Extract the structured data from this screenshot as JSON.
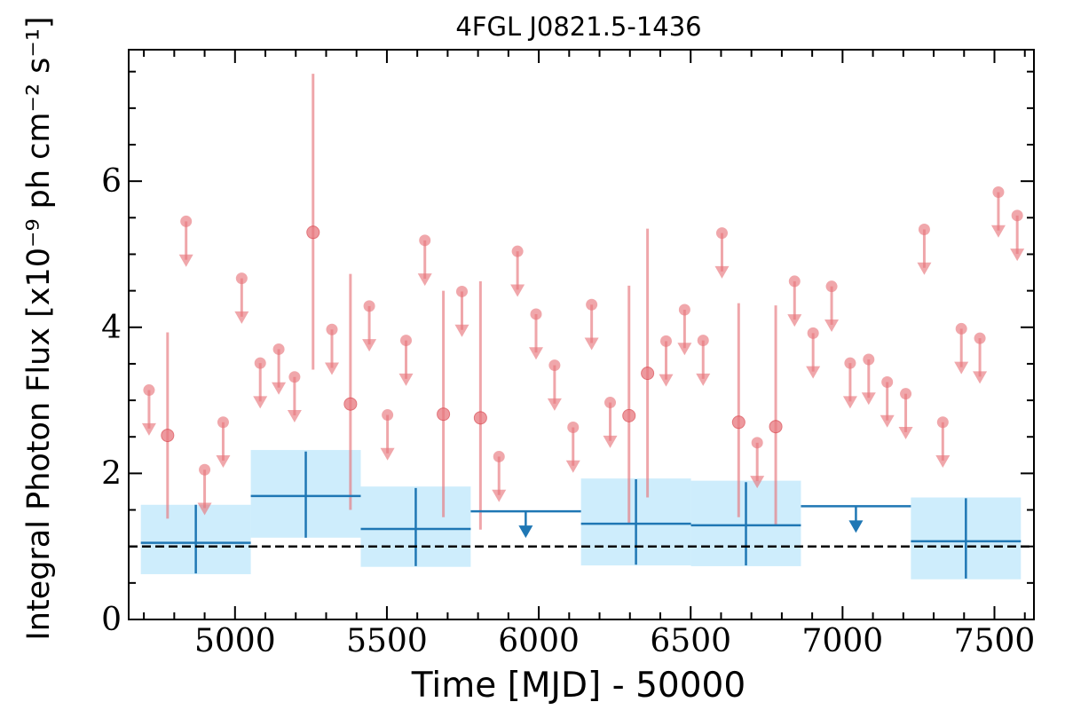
{
  "chart_data": {
    "type": "scatter",
    "title": "4FGL J0821.5-1436",
    "xlabel": "Time [MJD] - 50000",
    "ylabel": "Integral Photon Flux [x10⁻⁹ ph cm⁻² s⁻¹]",
    "xlim": [
      4650,
      7630
    ],
    "ylim": [
      0,
      7.8
    ],
    "xticks": [
      5000,
      5500,
      6000,
      6500,
      7000,
      7500
    ],
    "xtick_labels": [
      "5000",
      "5500",
      "6000",
      "6500",
      "7000",
      "7500"
    ],
    "yticks": [
      0,
      2,
      4,
      6
    ],
    "ytick_labels": [
      "0",
      "2",
      "4",
      "6"
    ],
    "reference_level": 1.0,
    "colors": {
      "short_bin": "#e8787e",
      "long_bin": "#1f77b4",
      "long_bin_band": "#b3e4fb",
      "reference": "#000000"
    },
    "series": [
      {
        "bin": "short",
        "detections": [
          {
            "x": 4778,
            "y": 2.52,
            "lo": 1.38,
            "hi": 3.93
          },
          {
            "x": 5257,
            "y": 5.3,
            "lo": 3.42,
            "hi": 7.47
          },
          {
            "x": 5380,
            "y": 2.95,
            "lo": 1.5,
            "hi": 4.73
          },
          {
            "x": 5686,
            "y": 2.81,
            "lo": 1.4,
            "hi": 4.5
          },
          {
            "x": 5808,
            "y": 2.76,
            "lo": 1.23,
            "hi": 4.63
          },
          {
            "x": 6297,
            "y": 2.79,
            "lo": 1.32,
            "hi": 4.57
          },
          {
            "x": 6358,
            "y": 3.37,
            "lo": 1.67,
            "hi": 5.35
          },
          {
            "x": 6658,
            "y": 2.7,
            "lo": 1.4,
            "hi": 4.33
          },
          {
            "x": 6780,
            "y": 2.64,
            "lo": 1.28,
            "hi": 4.3
          }
        ],
        "upper_limits": [
          {
            "x": 4717,
            "y": 3.14
          },
          {
            "x": 4839,
            "y": 5.45
          },
          {
            "x": 4900,
            "y": 2.05
          },
          {
            "x": 4961,
            "y": 2.7
          },
          {
            "x": 5022,
            "y": 4.67
          },
          {
            "x": 5083,
            "y": 3.51
          },
          {
            "x": 5144,
            "y": 3.7
          },
          {
            "x": 5196,
            "y": 3.32
          },
          {
            "x": 5319,
            "y": 3.97
          },
          {
            "x": 5442,
            "y": 4.29
          },
          {
            "x": 5502,
            "y": 2.8
          },
          {
            "x": 5563,
            "y": 3.82
          },
          {
            "x": 5625,
            "y": 5.19
          },
          {
            "x": 5747,
            "y": 4.49
          },
          {
            "x": 5869,
            "y": 2.23
          },
          {
            "x": 5930,
            "y": 5.04
          },
          {
            "x": 5991,
            "y": 4.18
          },
          {
            "x": 6052,
            "y": 3.48
          },
          {
            "x": 6113,
            "y": 2.63
          },
          {
            "x": 6174,
            "y": 4.31
          },
          {
            "x": 6235,
            "y": 2.97
          },
          {
            "x": 6419,
            "y": 3.81
          },
          {
            "x": 6480,
            "y": 4.24
          },
          {
            "x": 6541,
            "y": 3.82
          },
          {
            "x": 6603,
            "y": 5.29
          },
          {
            "x": 6719,
            "y": 2.42
          },
          {
            "x": 6842,
            "y": 4.63
          },
          {
            "x": 6903,
            "y": 3.92
          },
          {
            "x": 6964,
            "y": 4.56
          },
          {
            "x": 7025,
            "y": 3.51
          },
          {
            "x": 7086,
            "y": 3.56
          },
          {
            "x": 7147,
            "y": 3.25
          },
          {
            "x": 7208,
            "y": 3.09
          },
          {
            "x": 7269,
            "y": 5.34
          },
          {
            "x": 7330,
            "y": 2.7
          },
          {
            "x": 7391,
            "y": 3.98
          },
          {
            "x": 7452,
            "y": 3.85
          },
          {
            "x": 7513,
            "y": 5.85
          },
          {
            "x": 7575,
            "y": 5.53
          }
        ]
      },
      {
        "bin": "long",
        "detections": [
          {
            "x0": 4690,
            "x1": 5052,
            "x": 4871,
            "y": 1.05,
            "lo": 0.63,
            "hi": 1.57,
            "band_lo": 0.62,
            "band_hi": 1.57
          },
          {
            "x0": 5052,
            "x1": 5414,
            "x": 5233,
            "y": 1.69,
            "lo": 1.12,
            "hi": 2.3,
            "band_lo": 1.12,
            "band_hi": 2.32
          },
          {
            "x0": 5414,
            "x1": 5776,
            "x": 5595,
            "y": 1.24,
            "lo": 0.73,
            "hi": 1.8,
            "band_lo": 0.72,
            "band_hi": 1.82
          },
          {
            "x0": 6139,
            "x1": 6501,
            "x": 6320,
            "y": 1.31,
            "lo": 0.75,
            "hi": 1.92,
            "band_lo": 0.74,
            "band_hi": 1.93
          },
          {
            "x0": 6501,
            "x1": 6863,
            "x": 6682,
            "y": 1.29,
            "lo": 0.74,
            "hi": 1.88,
            "band_lo": 0.73,
            "band_hi": 1.9
          },
          {
            "x0": 7225,
            "x1": 7587,
            "x": 7406,
            "y": 1.07,
            "lo": 0.56,
            "hi": 1.66,
            "band_lo": 0.55,
            "band_hi": 1.67
          }
        ],
        "upper_limits": [
          {
            "x0": 5776,
            "x1": 6139,
            "x": 5957,
            "y": 1.48
          },
          {
            "x0": 6863,
            "x1": 7225,
            "x": 7044,
            "y": 1.55
          }
        ]
      }
    ]
  }
}
